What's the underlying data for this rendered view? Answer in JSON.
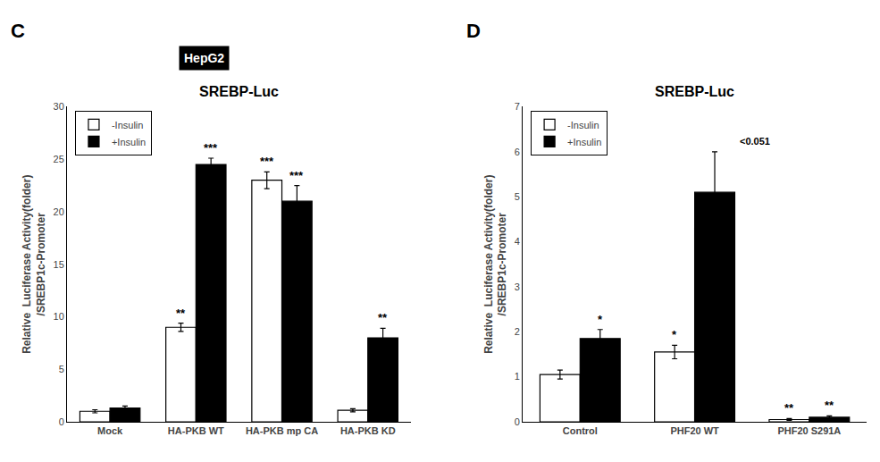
{
  "chart_data": [
    {
      "type": "bar",
      "label": "C",
      "title": "SREBP-Luc",
      "ylabel": "Relative  Luciferase Activity(folder)\n/SREBP1c-Promoter",
      "categories": [
        "Mock",
        "HA-PKB WT",
        "HA-PKB mp CA",
        "HA-PKB KD"
      ],
      "series": [
        {
          "name": "-Insulin",
          "color": "#ffffff",
          "values": [
            1.0,
            9.0,
            23.0,
            1.1
          ],
          "errors": [
            0.15,
            0.4,
            0.8,
            0.15
          ],
          "significance": [
            null,
            "**",
            "***",
            null
          ]
        },
        {
          "name": "+Insulin",
          "color": "#000000",
          "values": [
            1.3,
            24.5,
            21.0,
            8.0
          ],
          "errors": [
            0.2,
            0.6,
            1.5,
            0.9
          ],
          "significance": [
            null,
            "***",
            "***",
            "**"
          ]
        }
      ],
      "ylim": [
        0,
        30
      ],
      "yticks": [
        0,
        5,
        10,
        15,
        20,
        25,
        30
      ],
      "grid": false,
      "legend": "upper left",
      "annotations": [
        {
          "text": "HepG2"
        }
      ]
    },
    {
      "type": "bar",
      "label": "D",
      "title": "SREBP-Luc",
      "ylabel": "Relative  Luciferase Activity(folder)\n/SREBP1c-Promoter",
      "categories": [
        "Control",
        "PHF20 WT",
        "PHF20 S291A"
      ],
      "series": [
        {
          "name": "-Insulin",
          "color": "#ffffff",
          "values": [
            1.05,
            1.55,
            0.05
          ],
          "errors": [
            0.1,
            0.15,
            0.02
          ],
          "significance": [
            null,
            "*",
            "**"
          ]
        },
        {
          "name": "+Insulin",
          "color": "#000000",
          "values": [
            1.85,
            5.1,
            0.1
          ],
          "errors": [
            0.2,
            0.9,
            0.03
          ],
          "significance": [
            "*",
            null,
            "**"
          ]
        }
      ],
      "ylim": [
        0,
        7
      ],
      "yticks": [
        0,
        1,
        2,
        3,
        4,
        5,
        6,
        7
      ],
      "grid": false,
      "legend": "upper left",
      "annotations": [
        {
          "text": "<0.051",
          "category": "PHF20 WT",
          "series": "+Insulin"
        }
      ]
    }
  ]
}
